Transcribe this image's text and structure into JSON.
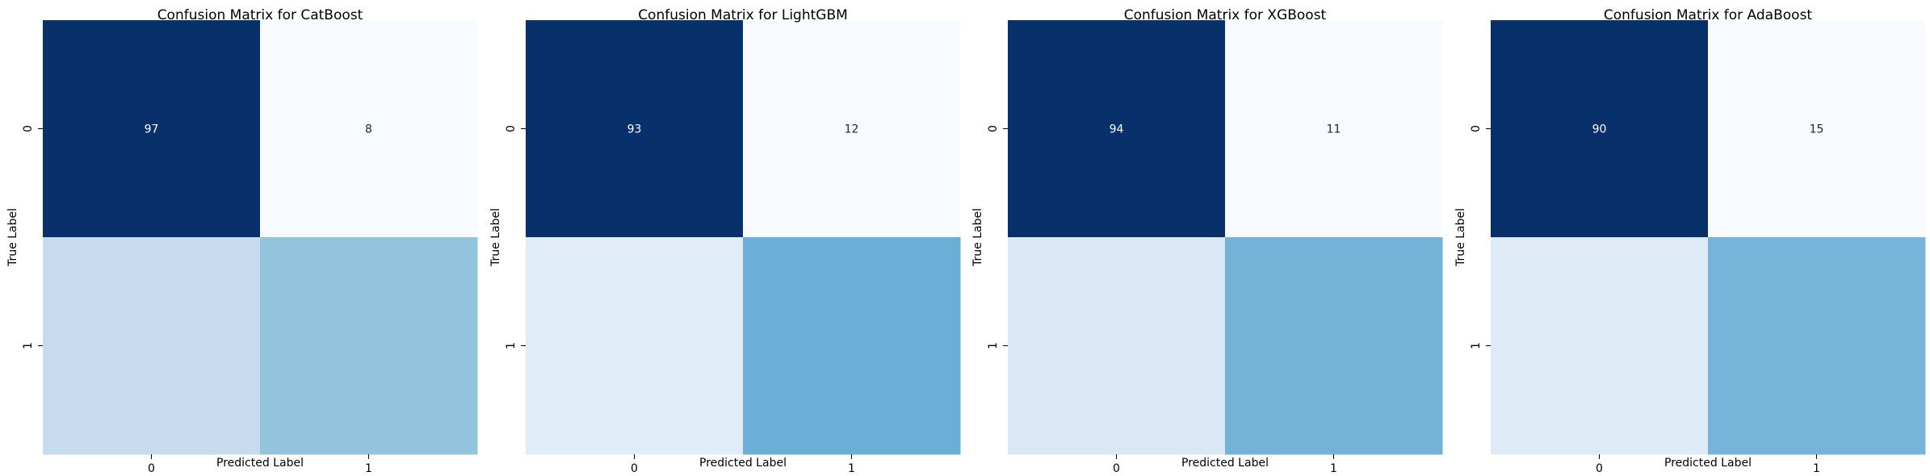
{
  "chart_data": [
    {
      "type": "heatmap",
      "title": "Confusion Matrix for CatBoost",
      "xlabel": "Predicted Label",
      "ylabel": "True Label",
      "x_ticks": [
        "0",
        "1"
      ],
      "y_ticks": [
        "0",
        "1"
      ],
      "colormap": "Blues",
      "annotated_values": [
        [
          97,
          8
        ],
        [
          null,
          null
        ]
      ],
      "cell_colors": [
        [
          "#08306b",
          "#f7fbff"
        ],
        [
          "#c7dbef",
          "#93c4de"
        ]
      ]
    },
    {
      "type": "heatmap",
      "title": "Confusion Matrix for LightGBM",
      "xlabel": "Predicted Label",
      "ylabel": "True Label",
      "x_ticks": [
        "0",
        "1"
      ],
      "y_ticks": [
        "0",
        "1"
      ],
      "colormap": "Blues",
      "annotated_values": [
        [
          93,
          12
        ],
        [
          null,
          null
        ]
      ],
      "cell_colors": [
        [
          "#08306b",
          "#f7fbff"
        ],
        [
          "#e0ecf8",
          "#6baed6"
        ]
      ]
    },
    {
      "type": "heatmap",
      "title": "Confusion Matrix for XGBoost",
      "xlabel": "Predicted Label",
      "ylabel": "True Label",
      "x_ticks": [
        "0",
        "1"
      ],
      "y_ticks": [
        "0",
        "1"
      ],
      "colormap": "Blues",
      "annotated_values": [
        [
          94,
          11
        ],
        [
          null,
          null
        ]
      ],
      "cell_colors": [
        [
          "#08306b",
          "#f7fbff"
        ],
        [
          "#dae8f6",
          "#75b2d8"
        ]
      ]
    },
    {
      "type": "heatmap",
      "title": "Confusion Matrix for AdaBoost",
      "xlabel": "Predicted Label",
      "ylabel": "True Label",
      "x_ticks": [
        "0",
        "1"
      ],
      "y_ticks": [
        "0",
        "1"
      ],
      "colormap": "Blues",
      "annotated_values": [
        [
          90,
          15
        ],
        [
          null,
          null
        ]
      ],
      "cell_colors": [
        [
          "#08306b",
          "#f7fbff"
        ],
        [
          "#deebf7",
          "#78b4d9"
        ]
      ]
    }
  ]
}
